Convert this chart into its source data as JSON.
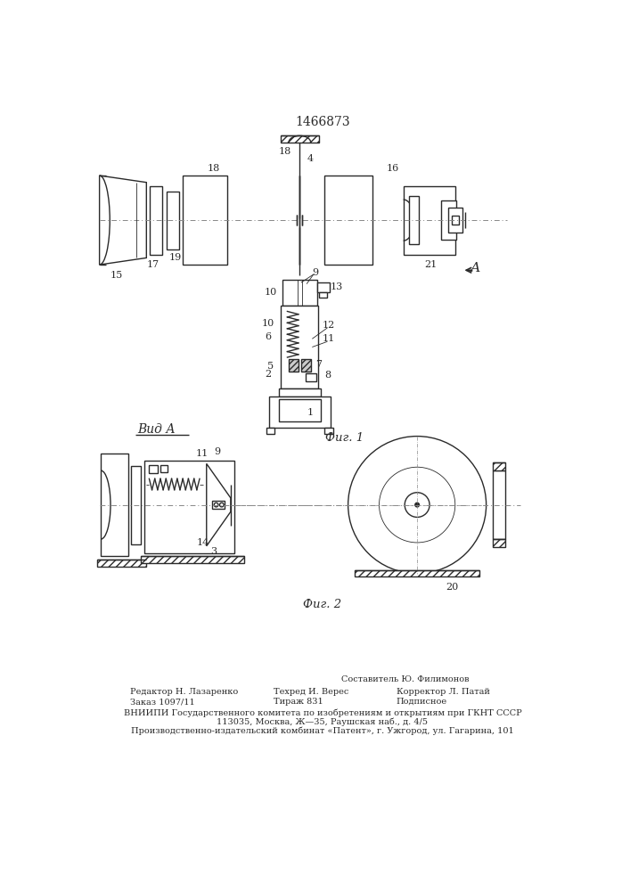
{
  "title": "1466873",
  "title_fontsize": 10,
  "fig1_label": "Фиг. 1",
  "fig2_label": "Фиг. 2",
  "vid_label": "Вид А",
  "footer_lines": [
    "Составитель Ю. Филимонов",
    "Редактор Н. Лазаренко",
    "Техред И. Верес",
    "Корректор Л. Патай",
    "Заказ 1097/11",
    "Тираж 831",
    "Подписное",
    "ВНИИПИ Государственного комитета по изобретениям и открытиям при ГКНТ СССР",
    "113035, Москва, Ж—35, Раушская наб., д. 4/5",
    "Производственно-издательский комбинат «Патент», г. Ужгород, ул. Гагарина, 101"
  ],
  "bg_color": "#ffffff",
  "line_color": "#2a2a2a",
  "centerline_color": "#888888",
  "line_width": 1.0,
  "thin_line": 0.6,
  "thick_line": 1.4
}
